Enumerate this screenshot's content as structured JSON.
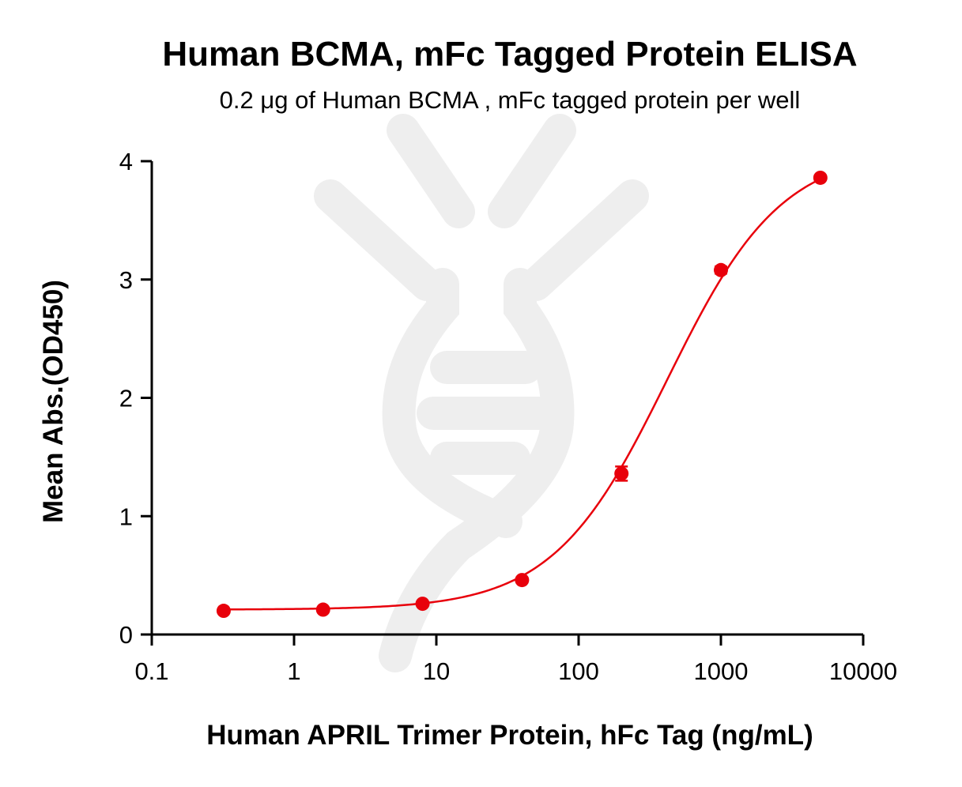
{
  "chart_data": {
    "type": "scatter",
    "title": "Human BCMA, mFc Tagged Protein ELISA",
    "subtitle": "0.2 μg of Human BCMA , mFc tagged protein per well",
    "xlabel": "Human APRIL Trimer Protein, hFc Tag (ng/mL)",
    "ylabel": "Mean Abs.(OD450)",
    "x_scale": "log",
    "xlim": [
      0.1,
      10000
    ],
    "ylim": [
      0,
      4
    ],
    "x_ticks": [
      "0.1",
      "1",
      "10",
      "100",
      "1000",
      "10000"
    ],
    "y_ticks": [
      "0",
      "1",
      "2",
      "3",
      "4"
    ],
    "grid": false,
    "colors": {
      "series": "#e8000b",
      "axis": "#000000",
      "watermark": "#eeeeee"
    },
    "series": [
      {
        "x": [
          0.32,
          1.6,
          8,
          40,
          200,
          1000,
          5000
        ],
        "y": [
          0.2,
          0.21,
          0.26,
          0.46,
          1.36,
          3.08,
          3.86
        ],
        "error": [
          0.01,
          0.01,
          0.01,
          0.02,
          0.06,
          0.03,
          0.02
        ],
        "fit": {
          "model": "4PL",
          "bottom": 0.21,
          "top": 4.1,
          "ec50": 420,
          "hill": 1.08
        }
      }
    ]
  }
}
